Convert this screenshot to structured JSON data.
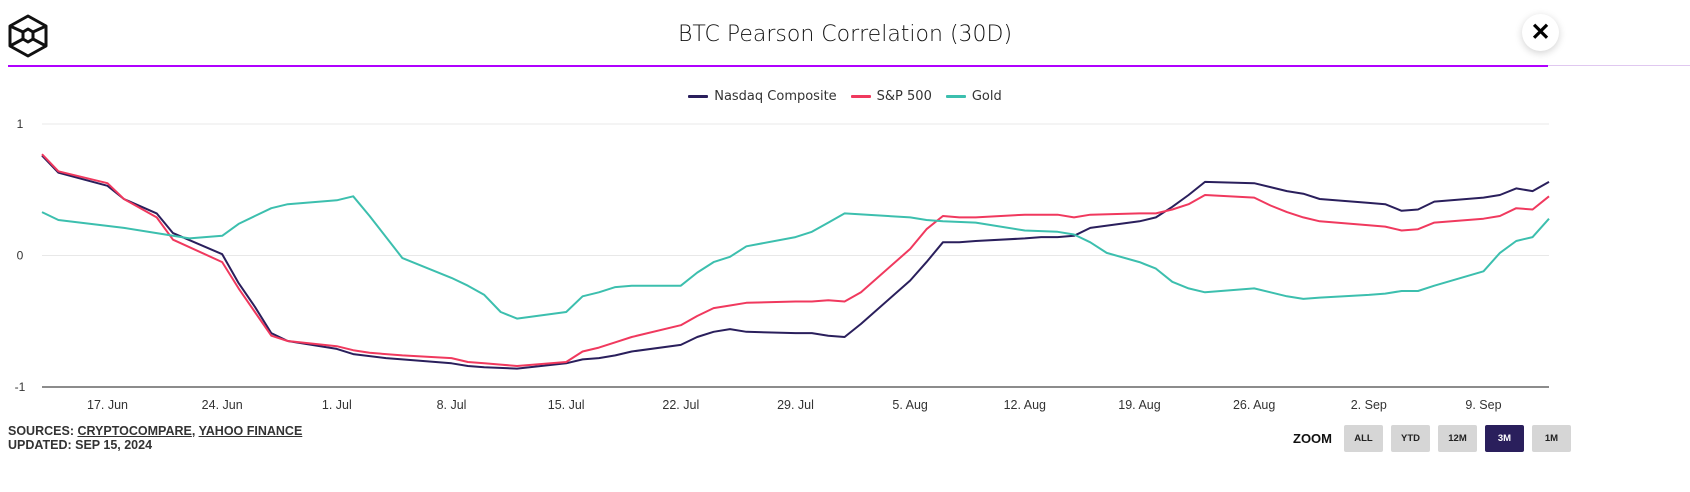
{
  "header": {
    "title": "BTC Pearson Correlation (30D)",
    "logo": "cube-logo",
    "close_icon": "close-icon",
    "close_glyph": "✕"
  },
  "colors": {
    "accent_rule": "#b000ff",
    "nasdaq": "#2a1f5c",
    "sp500": "#f0395e",
    "gold": "#3cbfae",
    "zoom_active": "#2a1f5c"
  },
  "footer": {
    "sources_label": "SOURCES:",
    "sources": [
      "CRYPTOCOMPARE",
      "YAHOO FINANCE"
    ],
    "separator": ",",
    "updated": "UPDATED: SEP 15, 2024"
  },
  "zoom": {
    "label": "ZOOM",
    "buttons": [
      "ALL",
      "YTD",
      "12M",
      "3M",
      "1M"
    ],
    "active": "3M"
  },
  "chart_data": {
    "type": "line",
    "title": "BTC Pearson Correlation (30D)",
    "ylim": [
      -1,
      1
    ],
    "yticks": [
      "1",
      "0",
      "-1"
    ],
    "xlim": [
      "2024-06-13",
      "2024-09-13"
    ],
    "xticks": [
      {
        "date": "2024-06-17",
        "label": "17. Jun"
      },
      {
        "date": "2024-06-24",
        "label": "24. Jun"
      },
      {
        "date": "2024-07-01",
        "label": "1. Jul"
      },
      {
        "date": "2024-07-08",
        "label": "8. Jul"
      },
      {
        "date": "2024-07-15",
        "label": "15. Jul"
      },
      {
        "date": "2024-07-22",
        "label": "22. Jul"
      },
      {
        "date": "2024-07-29",
        "label": "29. Jul"
      },
      {
        "date": "2024-08-05",
        "label": "5. Aug"
      },
      {
        "date": "2024-08-12",
        "label": "12. Aug"
      },
      {
        "date": "2024-08-19",
        "label": "19. Aug"
      },
      {
        "date": "2024-08-26",
        "label": "26. Aug"
      },
      {
        "date": "2024-09-02",
        "label": "2. Sep"
      },
      {
        "date": "2024-09-09",
        "label": "9. Sep"
      }
    ],
    "grid": true,
    "legend": "top-center",
    "series": [
      {
        "name": "Nasdaq Composite",
        "color": "#2a1f5c",
        "points": [
          [
            "2024-06-13",
            0.76
          ],
          [
            "2024-06-14",
            0.63
          ],
          [
            "2024-06-17",
            0.53
          ],
          [
            "2024-06-18",
            0.43
          ],
          [
            "2024-06-20",
            0.32
          ],
          [
            "2024-06-21",
            0.17
          ],
          [
            "2024-06-24",
            0.01
          ],
          [
            "2024-06-25",
            -0.21
          ],
          [
            "2024-06-26",
            -0.39
          ],
          [
            "2024-06-27",
            -0.59
          ],
          [
            "2024-06-28",
            -0.65
          ],
          [
            "2024-07-01",
            -0.71
          ],
          [
            "2024-07-02",
            -0.75
          ],
          [
            "2024-07-04",
            -0.78
          ],
          [
            "2024-07-05",
            -0.79
          ],
          [
            "2024-07-08",
            -0.82
          ],
          [
            "2024-07-09",
            -0.84
          ],
          [
            "2024-07-10",
            -0.85
          ],
          [
            "2024-07-12",
            -0.86
          ],
          [
            "2024-07-15",
            -0.82
          ],
          [
            "2024-07-16",
            -0.79
          ],
          [
            "2024-07-17",
            -0.78
          ],
          [
            "2024-07-18",
            -0.76
          ],
          [
            "2024-07-19",
            -0.73
          ],
          [
            "2024-07-22",
            -0.68
          ],
          [
            "2024-07-23",
            -0.62
          ],
          [
            "2024-07-24",
            -0.58
          ],
          [
            "2024-07-25",
            -0.56
          ],
          [
            "2024-07-26",
            -0.58
          ],
          [
            "2024-07-29",
            -0.59
          ],
          [
            "2024-07-30",
            -0.59
          ],
          [
            "2024-07-31",
            -0.61
          ],
          [
            "2024-08-01",
            -0.62
          ],
          [
            "2024-08-02",
            -0.52
          ],
          [
            "2024-08-05",
            -0.19
          ],
          [
            "2024-08-06",
            -0.05
          ],
          [
            "2024-08-07",
            0.1
          ],
          [
            "2024-08-08",
            0.1
          ],
          [
            "2024-08-09",
            0.11
          ],
          [
            "2024-08-12",
            0.13
          ],
          [
            "2024-08-13",
            0.14
          ],
          [
            "2024-08-14",
            0.14
          ],
          [
            "2024-08-15",
            0.15
          ],
          [
            "2024-08-16",
            0.21
          ],
          [
            "2024-08-19",
            0.26
          ],
          [
            "2024-08-20",
            0.29
          ],
          [
            "2024-08-21",
            0.37
          ],
          [
            "2024-08-22",
            0.46
          ],
          [
            "2024-08-23",
            0.56
          ],
          [
            "2024-08-26",
            0.55
          ],
          [
            "2024-08-27",
            0.52
          ],
          [
            "2024-08-28",
            0.49
          ],
          [
            "2024-08-29",
            0.47
          ],
          [
            "2024-08-30",
            0.43
          ],
          [
            "2024-09-02",
            0.4
          ],
          [
            "2024-09-03",
            0.39
          ],
          [
            "2024-09-04",
            0.34
          ],
          [
            "2024-09-05",
            0.35
          ],
          [
            "2024-09-06",
            0.41
          ],
          [
            "2024-09-09",
            0.44
          ],
          [
            "2024-09-10",
            0.46
          ],
          [
            "2024-09-11",
            0.51
          ],
          [
            "2024-09-12",
            0.49
          ],
          [
            "2024-09-13",
            0.56
          ]
        ]
      },
      {
        "name": "S&P 500",
        "color": "#f0395e",
        "points": [
          [
            "2024-06-13",
            0.77
          ],
          [
            "2024-06-14",
            0.64
          ],
          [
            "2024-06-17",
            0.55
          ],
          [
            "2024-06-18",
            0.43
          ],
          [
            "2024-06-20",
            0.29
          ],
          [
            "2024-06-21",
            0.12
          ],
          [
            "2024-06-24",
            -0.05
          ],
          [
            "2024-06-25",
            -0.25
          ],
          [
            "2024-06-26",
            -0.43
          ],
          [
            "2024-06-27",
            -0.61
          ],
          [
            "2024-06-28",
            -0.65
          ],
          [
            "2024-07-01",
            -0.69
          ],
          [
            "2024-07-02",
            -0.72
          ],
          [
            "2024-07-03",
            -0.74
          ],
          [
            "2024-07-05",
            -0.76
          ],
          [
            "2024-07-08",
            -0.78
          ],
          [
            "2024-07-09",
            -0.81
          ],
          [
            "2024-07-10",
            -0.82
          ],
          [
            "2024-07-11",
            -0.83
          ],
          [
            "2024-07-12",
            -0.84
          ],
          [
            "2024-07-15",
            -0.81
          ],
          [
            "2024-07-16",
            -0.73
          ],
          [
            "2024-07-17",
            -0.7
          ],
          [
            "2024-07-18",
            -0.66
          ],
          [
            "2024-07-19",
            -0.62
          ],
          [
            "2024-07-22",
            -0.53
          ],
          [
            "2024-07-23",
            -0.46
          ],
          [
            "2024-07-24",
            -0.4
          ],
          [
            "2024-07-25",
            -0.38
          ],
          [
            "2024-07-26",
            -0.36
          ],
          [
            "2024-07-29",
            -0.35
          ],
          [
            "2024-07-30",
            -0.35
          ],
          [
            "2024-07-31",
            -0.34
          ],
          [
            "2024-08-01",
            -0.35
          ],
          [
            "2024-08-02",
            -0.28
          ],
          [
            "2024-08-05",
            0.05
          ],
          [
            "2024-08-06",
            0.2
          ],
          [
            "2024-08-07",
            0.3
          ],
          [
            "2024-08-08",
            0.29
          ],
          [
            "2024-08-09",
            0.29
          ],
          [
            "2024-08-12",
            0.31
          ],
          [
            "2024-08-13",
            0.31
          ],
          [
            "2024-08-14",
            0.31
          ],
          [
            "2024-08-15",
            0.29
          ],
          [
            "2024-08-16",
            0.31
          ],
          [
            "2024-08-19",
            0.32
          ],
          [
            "2024-08-20",
            0.32
          ],
          [
            "2024-08-21",
            0.35
          ],
          [
            "2024-08-22",
            0.39
          ],
          [
            "2024-08-23",
            0.46
          ],
          [
            "2024-08-26",
            0.44
          ],
          [
            "2024-08-27",
            0.38
          ],
          [
            "2024-08-28",
            0.33
          ],
          [
            "2024-08-29",
            0.29
          ],
          [
            "2024-08-30",
            0.26
          ],
          [
            "2024-09-02",
            0.23
          ],
          [
            "2024-09-03",
            0.22
          ],
          [
            "2024-09-04",
            0.19
          ],
          [
            "2024-09-05",
            0.2
          ],
          [
            "2024-09-06",
            0.25
          ],
          [
            "2024-09-09",
            0.28
          ],
          [
            "2024-09-10",
            0.3
          ],
          [
            "2024-09-11",
            0.36
          ],
          [
            "2024-09-12",
            0.35
          ],
          [
            "2024-09-13",
            0.45
          ]
        ]
      },
      {
        "name": "Gold",
        "color": "#3cbfae",
        "points": [
          [
            "2024-06-13",
            0.33
          ],
          [
            "2024-06-14",
            0.27
          ],
          [
            "2024-06-18",
            0.21
          ],
          [
            "2024-06-20",
            0.17
          ],
          [
            "2024-06-22",
            0.13
          ],
          [
            "2024-06-24",
            0.15
          ],
          [
            "2024-06-25",
            0.24
          ],
          [
            "2024-06-26",
            0.3
          ],
          [
            "2024-06-27",
            0.36
          ],
          [
            "2024-06-28",
            0.39
          ],
          [
            "2024-07-01",
            0.42
          ],
          [
            "2024-07-02",
            0.45
          ],
          [
            "2024-07-03",
            0.3
          ],
          [
            "2024-07-05",
            -0.02
          ],
          [
            "2024-07-08",
            -0.17
          ],
          [
            "2024-07-09",
            -0.23
          ],
          [
            "2024-07-10",
            -0.3
          ],
          [
            "2024-07-11",
            -0.43
          ],
          [
            "2024-07-12",
            -0.48
          ],
          [
            "2024-07-15",
            -0.43
          ],
          [
            "2024-07-16",
            -0.31
          ],
          [
            "2024-07-17",
            -0.28
          ],
          [
            "2024-07-18",
            -0.24
          ],
          [
            "2024-07-19",
            -0.23
          ],
          [
            "2024-07-22",
            -0.23
          ],
          [
            "2024-07-23",
            -0.13
          ],
          [
            "2024-07-24",
            -0.05
          ],
          [
            "2024-07-25",
            -0.01
          ],
          [
            "2024-07-26",
            0.07
          ],
          [
            "2024-07-29",
            0.14
          ],
          [
            "2024-07-30",
            0.18
          ],
          [
            "2024-07-31",
            0.25
          ],
          [
            "2024-08-01",
            0.32
          ],
          [
            "2024-08-05",
            0.29
          ],
          [
            "2024-08-06",
            0.27
          ],
          [
            "2024-08-07",
            0.26
          ],
          [
            "2024-08-09",
            0.25
          ],
          [
            "2024-08-12",
            0.19
          ],
          [
            "2024-08-14",
            0.18
          ],
          [
            "2024-08-15",
            0.16
          ],
          [
            "2024-08-16",
            0.1
          ],
          [
            "2024-08-17",
            0.02
          ],
          [
            "2024-08-19",
            -0.05
          ],
          [
            "2024-08-20",
            -0.1
          ],
          [
            "2024-08-21",
            -0.2
          ],
          [
            "2024-08-22",
            -0.25
          ],
          [
            "2024-08-23",
            -0.28
          ],
          [
            "2024-08-26",
            -0.25
          ],
          [
            "2024-08-27",
            -0.28
          ],
          [
            "2024-08-28",
            -0.31
          ],
          [
            "2024-08-29",
            -0.33
          ],
          [
            "2024-08-30",
            -0.32
          ],
          [
            "2024-09-02",
            -0.3
          ],
          [
            "2024-09-03",
            -0.29
          ],
          [
            "2024-09-04",
            -0.27
          ],
          [
            "2024-09-05",
            -0.27
          ],
          [
            "2024-09-06",
            -0.23
          ],
          [
            "2024-09-09",
            -0.12
          ],
          [
            "2024-09-10",
            0.02
          ],
          [
            "2024-09-11",
            0.11
          ],
          [
            "2024-09-12",
            0.14
          ],
          [
            "2024-09-13",
            0.28
          ]
        ]
      }
    ]
  }
}
